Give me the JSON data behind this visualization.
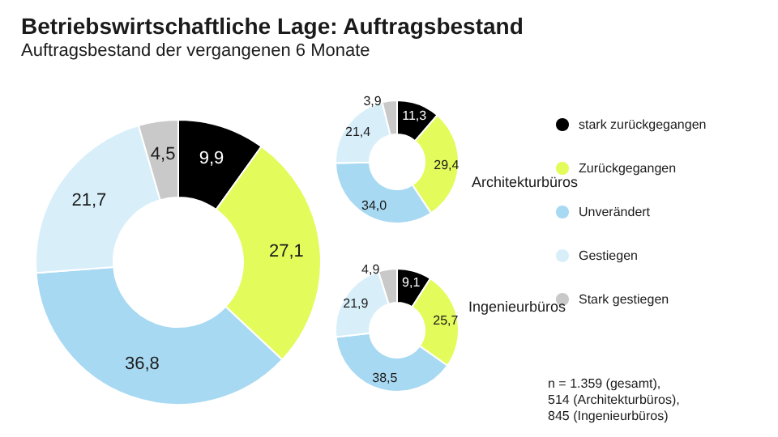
{
  "chart_data": [
    {
      "type": "donut",
      "title": "Betriebswirtschaftliche Lage: Auftragsbestand",
      "subtitle": "Auftragsbestand der vergangenen 6 Monate",
      "categories": [
        "stark zurückgegangen",
        "Zurückgegangen",
        "Unverändert",
        "Gestiegen",
        "Stark gestiegen"
      ],
      "values": [
        9.9,
        27.1,
        36.8,
        21.7,
        4.5
      ],
      "value_labels": [
        "9,9",
        "27,1",
        "36,8",
        "21,7",
        "4,5"
      ],
      "colors": [
        "#000000",
        "#e4fb5c",
        "#a8d9f2",
        "#d8effa",
        "#c9c9c9"
      ],
      "legend": "right",
      "annotations": [
        "n = 1.359 (gesamt),\n514 (Architekturbüros),\n845 (Ingenieurbüros)"
      ]
    },
    {
      "type": "donut",
      "title": "Architekturbüros",
      "values": [
        11.3,
        29.4,
        34.0,
        21.4,
        3.9
      ],
      "value_labels": [
        "11,3",
        "29,4",
        "34,0",
        "21,4",
        "3,9"
      ],
      "colors": [
        "#000000",
        "#e4fb5c",
        "#a8d9f2",
        "#d8effa",
        "#c9c9c9"
      ]
    },
    {
      "type": "donut",
      "title": "Ingenieurbüros",
      "values": [
        9.1,
        25.7,
        38.5,
        21.9,
        4.9
      ],
      "value_labels": [
        "9,1",
        "25,7",
        "38,5",
        "21,9",
        "4,9"
      ],
      "colors": [
        "#000000",
        "#e4fb5c",
        "#a8d9f2",
        "#d8effa",
        "#c9c9c9"
      ]
    }
  ]
}
